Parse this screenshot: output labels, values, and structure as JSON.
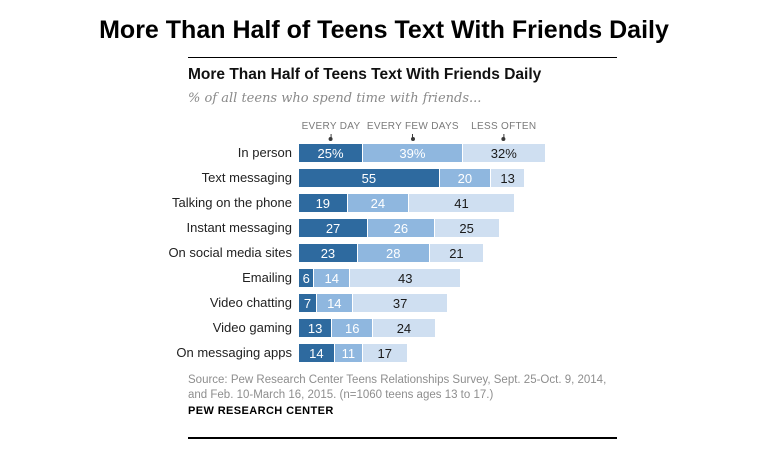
{
  "page": {
    "title": "More Than Half of Teens Text With Friends Daily"
  },
  "chart": {
    "title": "More Than Half of Teens Text With Friends Daily",
    "subtitle": "% of all teens who spend time with friends...",
    "legend_labels": [
      "EVERY DAY",
      "EVERY FEW DAYS",
      "LESS OFTEN"
    ],
    "source": "Source: Pew Research Center Teens Relationships Survey, Sept. 25-Oct. 9, 2014, and Feb. 10-March 16, 2015. (n=1060 teens ages 13 to 17.)",
    "brand": "PEW RESEARCH CENTER",
    "colors": {
      "every_day": "#2e6a9f",
      "every_few_days": "#8fb7df",
      "less_often": "#cfdff1",
      "label_on_dark": "#ffffff",
      "label_on_light": "#1a1a1a",
      "legend_text": "#7a7a7a",
      "subtitle_text": "#8a8a8a",
      "source_text": "#8e8e8e",
      "rule": "#000000"
    }
  },
  "chart_data": {
    "type": "bar",
    "orientation": "horizontal",
    "stacked": true,
    "unit": "percent",
    "xlim": [
      0,
      100
    ],
    "grid": false,
    "legend_position": "top",
    "title": "More Than Half of Teens Text With Friends Daily",
    "subtitle": "% of all teens who spend time with friends...",
    "categories": [
      "In person",
      "Text messaging",
      "Talking on the phone",
      "Instant messaging",
      "On social media sites",
      "Emailing",
      "Video chatting",
      "Video gaming",
      "On messaging apps"
    ],
    "series": [
      {
        "name": "Every day",
        "color": "#2e6a9f",
        "values": [
          25,
          55,
          19,
          27,
          23,
          6,
          7,
          13,
          14
        ]
      },
      {
        "name": "Every few days",
        "color": "#8fb7df",
        "values": [
          39,
          20,
          24,
          26,
          28,
          14,
          14,
          16,
          11
        ]
      },
      {
        "name": "Less often",
        "color": "#cfdff1",
        "values": [
          32,
          13,
          41,
          25,
          21,
          43,
          37,
          24,
          17
        ]
      }
    ],
    "first_row_value_suffix": "%",
    "value_labels_shown": true
  }
}
